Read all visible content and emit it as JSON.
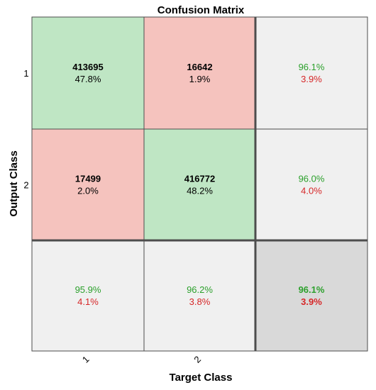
{
  "chart_data": {
    "type": "heatmap",
    "title": "Confusion Matrix",
    "xlabel": "Target Class",
    "ylabel": "Output Class",
    "x_tick_labels": [
      "1",
      "2"
    ],
    "y_tick_labels": [
      "1",
      "2"
    ],
    "cells": [
      [
        {
          "count": "413695",
          "percent": "47.8%",
          "kind": "correct"
        },
        {
          "count": "16642",
          "percent": "1.9%",
          "kind": "incorrect"
        }
      ],
      [
        {
          "count": "17499",
          "percent": "2.0%",
          "kind": "incorrect"
        },
        {
          "count": "416772",
          "percent": "48.2%",
          "kind": "correct"
        }
      ]
    ],
    "row_summary": [
      {
        "correct": "96.1%",
        "incorrect": "3.9%"
      },
      {
        "correct": "96.0%",
        "incorrect": "4.0%"
      }
    ],
    "column_summary": [
      {
        "correct": "95.9%",
        "incorrect": "4.1%"
      },
      {
        "correct": "96.2%",
        "incorrect": "3.8%"
      }
    ],
    "overall": {
      "correct": "96.1%",
      "incorrect": "3.9%"
    },
    "colors": {
      "correct_cell": "#bfe6c4",
      "incorrect_cell": "#f5c3be",
      "summary_cell": "#f0f0f0",
      "overall_cell": "#d9d9d9",
      "correct_text": "#2ca02c",
      "incorrect_text": "#d62728",
      "grid": "#4d4d4d",
      "text": "#000000"
    }
  }
}
